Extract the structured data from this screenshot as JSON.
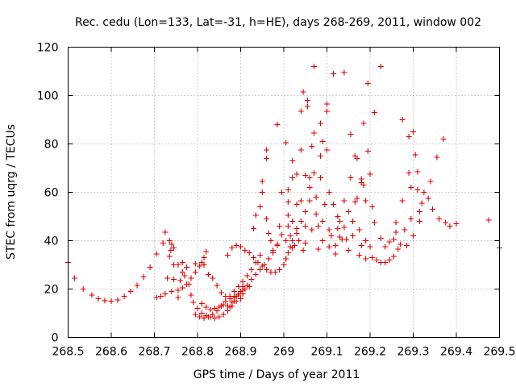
{
  "chart_data": {
    "type": "scatter",
    "title": "Rec. cedu (Lon=133, Lat=-31, h=HE), days 268-269, 2011, window 002",
    "xlabel": "GPS time / Days of year 2011",
    "ylabel": "STEC from uqrg / TECUs",
    "xlim": [
      268.5,
      269.5
    ],
    "ylim": [
      0,
      120
    ],
    "xticks": [
      268.5,
      268.6,
      268.7,
      268.8,
      268.9,
      269.0,
      269.1,
      269.2,
      269.3,
      269.4,
      269.5
    ],
    "xtick_labels": [
      "268.5",
      "268.6",
      "268.7",
      "268.8",
      "268.9",
      "269",
      "269.1",
      "269.2",
      "269.3",
      "269.4",
      "269.5"
    ],
    "yticks": [
      0,
      20,
      40,
      60,
      80,
      100,
      120
    ],
    "ytick_labels": [
      "0",
      "20",
      "40",
      "60",
      "80",
      "100",
      "120"
    ],
    "grid": true,
    "marker": "+",
    "color": "#e00000",
    "series": [
      {
        "name": "STEC",
        "points": [
          [
            268.5,
            31
          ],
          [
            268.515,
            24.5
          ],
          [
            268.535,
            20
          ],
          [
            268.555,
            17.5
          ],
          [
            268.57,
            16
          ],
          [
            268.585,
            15.2
          ],
          [
            268.6,
            15
          ],
          [
            268.615,
            15.5
          ],
          [
            268.63,
            17
          ],
          [
            268.645,
            19
          ],
          [
            268.66,
            21.5
          ],
          [
            268.675,
            25
          ],
          [
            268.69,
            29
          ],
          [
            268.705,
            34.5
          ],
          [
            268.72,
            39
          ],
          [
            268.725,
            43.5
          ],
          [
            268.735,
            40
          ],
          [
            268.74,
            38.5
          ],
          [
            268.745,
            37
          ],
          [
            268.738,
            36
          ],
          [
            268.705,
            16.5
          ],
          [
            268.715,
            17
          ],
          [
            268.725,
            18
          ],
          [
            268.74,
            19
          ],
          [
            268.755,
            19.5
          ],
          [
            268.765,
            20.5
          ],
          [
            268.775,
            22
          ],
          [
            268.785,
            24.5
          ],
          [
            268.795,
            27
          ],
          [
            268.805,
            29.5
          ],
          [
            268.815,
            33
          ],
          [
            268.82,
            35.5
          ],
          [
            268.81,
            31
          ],
          [
            268.795,
            30.5
          ],
          [
            268.775,
            29
          ],
          [
            268.765,
            31
          ],
          [
            268.755,
            30
          ],
          [
            268.765,
            27
          ],
          [
            268.77,
            25.5
          ],
          [
            268.78,
            22
          ],
          [
            268.76,
            23.5
          ],
          [
            268.745,
            24
          ],
          [
            268.755,
            16.5
          ],
          [
            268.735,
            33.5
          ],
          [
            268.745,
            30
          ],
          [
            268.73,
            24.5
          ],
          [
            268.785,
            17.5
          ],
          [
            268.79,
            14.5
          ],
          [
            268.8,
            12
          ],
          [
            268.81,
            10
          ],
          [
            268.82,
            9
          ],
          [
            268.83,
            8.5
          ],
          [
            268.84,
            8
          ],
          [
            268.85,
            8.5
          ],
          [
            268.86,
            9.5
          ],
          [
            268.87,
            11
          ],
          [
            268.88,
            13
          ],
          [
            268.885,
            15
          ],
          [
            268.89,
            17
          ],
          [
            268.9,
            19
          ],
          [
            268.905,
            21
          ],
          [
            268.795,
            9.5
          ],
          [
            268.805,
            8.5
          ],
          [
            268.815,
            8
          ],
          [
            268.825,
            8.5
          ],
          [
            268.835,
            9.5
          ],
          [
            268.845,
            11
          ],
          [
            268.855,
            13
          ],
          [
            268.865,
            15
          ],
          [
            268.875,
            17
          ],
          [
            268.885,
            19
          ],
          [
            268.895,
            21
          ],
          [
            268.905,
            23
          ],
          [
            268.915,
            25.5
          ],
          [
            268.925,
            28
          ],
          [
            268.935,
            31
          ],
          [
            268.945,
            34
          ],
          [
            268.81,
            14
          ],
          [
            268.82,
            12.5
          ],
          [
            268.83,
            11.5
          ],
          [
            268.84,
            12
          ],
          [
            268.85,
            12.5
          ],
          [
            268.86,
            13.5
          ],
          [
            268.87,
            13
          ],
          [
            268.875,
            12.5
          ],
          [
            268.88,
            14.5
          ],
          [
            268.885,
            16.5
          ],
          [
            268.89,
            15
          ],
          [
            268.895,
            17.5
          ],
          [
            268.9,
            16
          ],
          [
            268.905,
            18
          ],
          [
            268.91,
            20
          ],
          [
            268.92,
            21
          ],
          [
            268.815,
            30
          ],
          [
            268.825,
            26
          ],
          [
            268.835,
            24.5
          ],
          [
            268.845,
            21.5
          ],
          [
            268.855,
            18.5
          ],
          [
            268.865,
            17
          ],
          [
            268.875,
            16
          ],
          [
            268.885,
            17
          ],
          [
            268.895,
            18
          ],
          [
            268.905,
            19.5
          ],
          [
            268.915,
            21.5
          ],
          [
            268.925,
            24
          ],
          [
            268.935,
            26
          ],
          [
            268.945,
            28
          ],
          [
            268.955,
            30
          ],
          [
            268.965,
            32.5
          ],
          [
            268.975,
            35
          ],
          [
            268.985,
            38
          ],
          [
            268.995,
            42.5
          ],
          [
            268.87,
            34
          ],
          [
            268.88,
            37
          ],
          [
            268.89,
            38
          ],
          [
            268.9,
            37.5
          ],
          [
            268.91,
            36
          ],
          [
            268.92,
            35
          ],
          [
            268.93,
            33
          ],
          [
            268.94,
            31
          ],
          [
            268.95,
            29.5
          ],
          [
            268.96,
            28
          ],
          [
            268.97,
            27
          ],
          [
            268.98,
            27
          ],
          [
            268.99,
            28
          ],
          [
            269.0,
            30
          ],
          [
            269.005,
            32.5
          ],
          [
            269.01,
            35
          ],
          [
            269.015,
            37.5
          ],
          [
            269.02,
            40
          ],
          [
            269.03,
            43
          ],
          [
            268.93,
            45
          ],
          [
            268.935,
            50.5
          ],
          [
            268.945,
            54
          ],
          [
            268.95,
            60
          ],
          [
            268.95,
            64.5
          ],
          [
            268.96,
            74
          ],
          [
            268.96,
            77.5
          ],
          [
            268.96,
            49
          ],
          [
            268.965,
            43
          ],
          [
            268.97,
            40
          ],
          [
            268.975,
            36
          ],
          [
            268.985,
            38.5
          ],
          [
            268.985,
            88
          ],
          [
            268.995,
            60
          ],
          [
            268.99,
            46
          ],
          [
            269.005,
            32.5
          ],
          [
            269.005,
            40
          ],
          [
            269.01,
            46
          ],
          [
            269.01,
            50.5
          ],
          [
            269.01,
            56
          ],
          [
            269.01,
            61
          ],
          [
            269.005,
            80.5
          ],
          [
            269.015,
            42
          ],
          [
            269.02,
            37
          ],
          [
            269.02,
            48
          ],
          [
            269.02,
            66
          ],
          [
            269.02,
            73
          ],
          [
            269.025,
            38
          ],
          [
            269.03,
            45
          ],
          [
            269.03,
            55
          ],
          [
            269.03,
            67.5
          ],
          [
            269.035,
            40
          ],
          [
            269.04,
            48
          ],
          [
            269.04,
            56.5
          ],
          [
            269.04,
            77.5
          ],
          [
            269.04,
            93.5
          ],
          [
            269.045,
            101.5
          ],
          [
            269.045,
            36
          ],
          [
            269.05,
            39
          ],
          [
            269.05,
            46
          ],
          [
            269.05,
            52
          ],
          [
            269.05,
            67
          ],
          [
            269.055,
            95.5
          ],
          [
            269.055,
            98
          ],
          [
            269.06,
            56.5
          ],
          [
            269.06,
            62
          ],
          [
            269.06,
            66
          ],
          [
            269.065,
            44.5
          ],
          [
            269.065,
            79
          ],
          [
            269.07,
            84.5
          ],
          [
            269.07,
            112
          ],
          [
            269.07,
            68
          ],
          [
            269.075,
            58
          ],
          [
            269.075,
            51
          ],
          [
            269.08,
            46
          ],
          [
            269.08,
            36.5
          ],
          [
            269.085,
            66
          ],
          [
            269.085,
            75
          ],
          [
            269.085,
            88.5
          ],
          [
            269.09,
            81
          ],
          [
            269.09,
            48
          ],
          [
            269.09,
            40
          ],
          [
            269.095,
            55
          ],
          [
            269.1,
            93.5
          ],
          [
            269.1,
            96.5
          ],
          [
            269.1,
            77.5
          ],
          [
            269.105,
            60
          ],
          [
            269.105,
            44.5
          ],
          [
            269.105,
            37.5
          ],
          [
            269.11,
            42
          ],
          [
            269.115,
            55
          ],
          [
            269.115,
            109
          ],
          [
            269.12,
            34.5
          ],
          [
            269.12,
            38
          ],
          [
            269.125,
            45
          ],
          [
            269.125,
            50
          ],
          [
            269.13,
            48
          ],
          [
            269.13,
            41.5
          ],
          [
            269.135,
            40.5
          ],
          [
            269.14,
            45.5
          ],
          [
            269.14,
            56.5
          ],
          [
            269.14,
            109.5
          ],
          [
            269.145,
            40.5
          ],
          [
            269.15,
            36
          ],
          [
            269.15,
            52
          ],
          [
            269.155,
            66
          ],
          [
            269.155,
            84
          ],
          [
            269.16,
            42
          ],
          [
            269.16,
            48
          ],
          [
            269.165,
            56
          ],
          [
            269.165,
            75
          ],
          [
            269.17,
            57.5
          ],
          [
            269.17,
            74
          ],
          [
            269.175,
            44.5
          ],
          [
            269.175,
            34
          ],
          [
            269.18,
            38
          ],
          [
            269.18,
            64
          ],
          [
            269.18,
            65.5
          ],
          [
            269.185,
            88.5
          ],
          [
            269.185,
            63
          ],
          [
            269.19,
            56.5
          ],
          [
            269.19,
            40
          ],
          [
            269.19,
            32.5
          ],
          [
            269.195,
            77
          ],
          [
            269.195,
            105
          ],
          [
            269.2,
            67.5
          ],
          [
            269.2,
            37.5
          ],
          [
            269.205,
            54
          ],
          [
            269.205,
            33
          ],
          [
            269.21,
            47.5
          ],
          [
            269.21,
            93
          ],
          [
            269.215,
            32
          ],
          [
            269.225,
            112
          ],
          [
            269.225,
            41
          ],
          [
            269.225,
            31
          ],
          [
            269.235,
            31
          ],
          [
            269.235,
            37.5
          ],
          [
            269.245,
            32
          ],
          [
            269.245,
            39.5
          ],
          [
            269.255,
            33.5
          ],
          [
            269.255,
            40.5
          ],
          [
            269.26,
            47.5
          ],
          [
            269.26,
            43.5
          ],
          [
            269.265,
            36.5
          ],
          [
            269.27,
            38.5
          ],
          [
            269.275,
            56.5
          ],
          [
            269.275,
            90
          ],
          [
            269.28,
            44.5
          ],
          [
            269.285,
            38
          ],
          [
            269.29,
            68
          ],
          [
            269.29,
            83
          ],
          [
            269.295,
            49
          ],
          [
            269.295,
            62
          ],
          [
            269.3,
            42
          ],
          [
            269.3,
            85
          ],
          [
            269.305,
            75.5
          ],
          [
            269.31,
            68.5
          ],
          [
            269.31,
            61
          ],
          [
            269.315,
            52
          ],
          [
            269.315,
            48
          ],
          [
            269.32,
            55.5
          ],
          [
            269.325,
            60
          ],
          [
            269.335,
            57.5
          ],
          [
            269.34,
            64.5
          ],
          [
            269.345,
            53
          ],
          [
            269.355,
            74.5
          ],
          [
            269.36,
            49
          ],
          [
            269.37,
            82
          ],
          [
            269.375,
            47.5
          ],
          [
            269.385,
            46
          ],
          [
            269.4,
            47
          ],
          [
            269.475,
            48.5
          ],
          [
            269.5,
            37
          ]
        ]
      }
    ]
  }
}
